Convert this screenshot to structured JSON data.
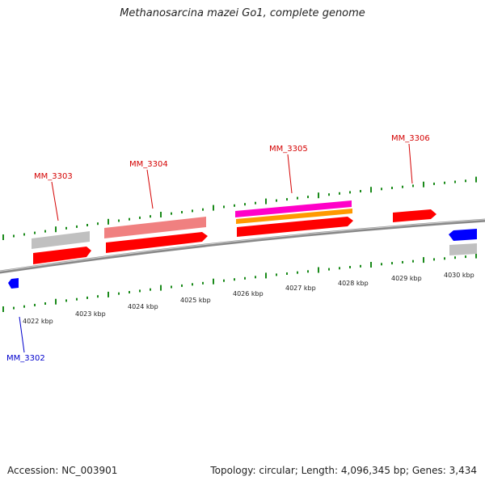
{
  "title": "Methanosarcina mazei Go1, complete genome",
  "footer": {
    "accession": "Accession: NC_003901",
    "summary": "Topology: circular; Length: 4,096,345 bp; Genes: 3,434"
  },
  "colors": {
    "forward_cds": "#ff0000",
    "reverse_cds": "#0000ff",
    "gene_grey": "#c0c0c0",
    "gene_pink": "#f08080",
    "magenta": "#ff00c8",
    "orange": "#ff9900",
    "tick": "#1a8a1a",
    "backbone": "#888888",
    "label_red": "#d40000",
    "label_blue": "#0000cc"
  },
  "kbp_ticks": [
    {
      "kbp": 4022,
      "label": "4022 kbp"
    },
    {
      "kbp": 4023,
      "label": "4023 kbp"
    },
    {
      "kbp": 4024,
      "label": "4024 kbp"
    },
    {
      "kbp": 4025,
      "label": "4025 kbp"
    },
    {
      "kbp": 4026,
      "label": "4026 kbp"
    },
    {
      "kbp": 4027,
      "label": "4027 kbp"
    },
    {
      "kbp": 4028,
      "label": "4028 kbp"
    },
    {
      "kbp": 4029,
      "label": "4029 kbp"
    },
    {
      "kbp": 4030,
      "label": "4030 kbp"
    }
  ],
  "genes": [
    {
      "name": "MM_3302",
      "strand": "reverse"
    },
    {
      "name": "MM_3303",
      "strand": "forward"
    },
    {
      "name": "MM_3304",
      "strand": "forward"
    },
    {
      "name": "MM_3305",
      "strand": "forward"
    },
    {
      "name": "MM_3306",
      "strand": "forward"
    }
  ]
}
